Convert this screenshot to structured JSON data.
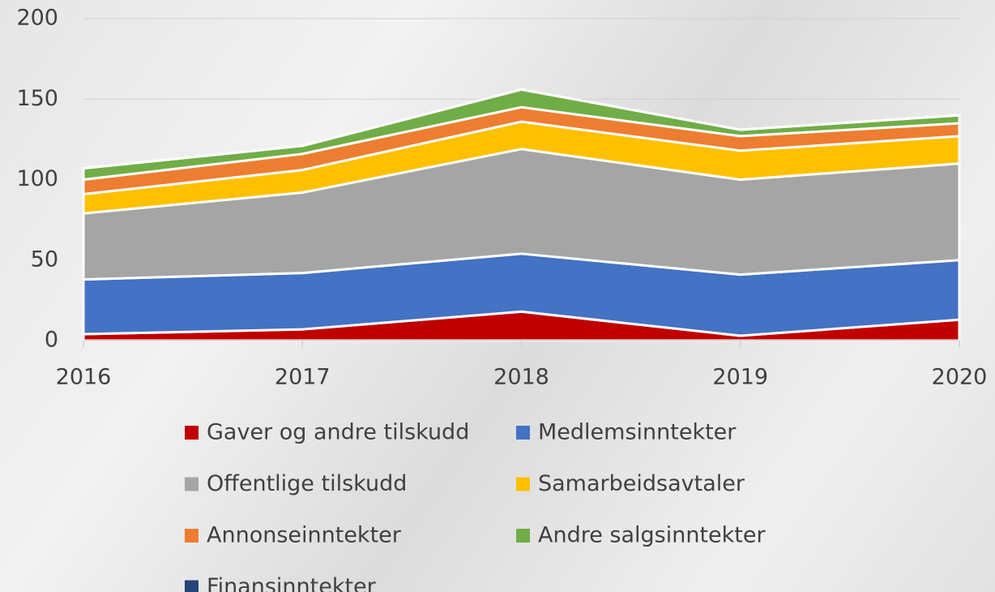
{
  "chart_data": {
    "type": "stacked_area",
    "categories": [
      "2016",
      "2017",
      "2018",
      "2019",
      "2020"
    ],
    "series": [
      {
        "name": "Gaver og andre tilskudd",
        "color": "#c00000",
        "values": [
          4,
          7,
          18,
          3,
          13
        ]
      },
      {
        "name": "Medlemsinntekter",
        "color": "#4472c4",
        "values": [
          34,
          35,
          36,
          38,
          37
        ]
      },
      {
        "name": "Offentlige tilskudd",
        "color": "#a5a5a5",
        "values": [
          41,
          50,
          65,
          59,
          60
        ]
      },
      {
        "name": "Samarbeidsavtaler",
        "color": "#ffc000",
        "values": [
          12,
          14,
          17,
          18,
          17
        ]
      },
      {
        "name": "Annonseinntekter",
        "color": "#ed7d31",
        "values": [
          9,
          10,
          9,
          9,
          8
        ]
      },
      {
        "name": "Andre salgsinntekter",
        "color": "#70ad47",
        "values": [
          7,
          5,
          11,
          4,
          5
        ]
      },
      {
        "name": "Finansinntekter",
        "color": "#264478",
        "values": [
          0,
          0,
          0,
          0,
          0
        ]
      }
    ],
    "ylim": [
      0,
      200
    ],
    "yticks": [
      0,
      50,
      100,
      150,
      200
    ],
    "grid": true
  }
}
